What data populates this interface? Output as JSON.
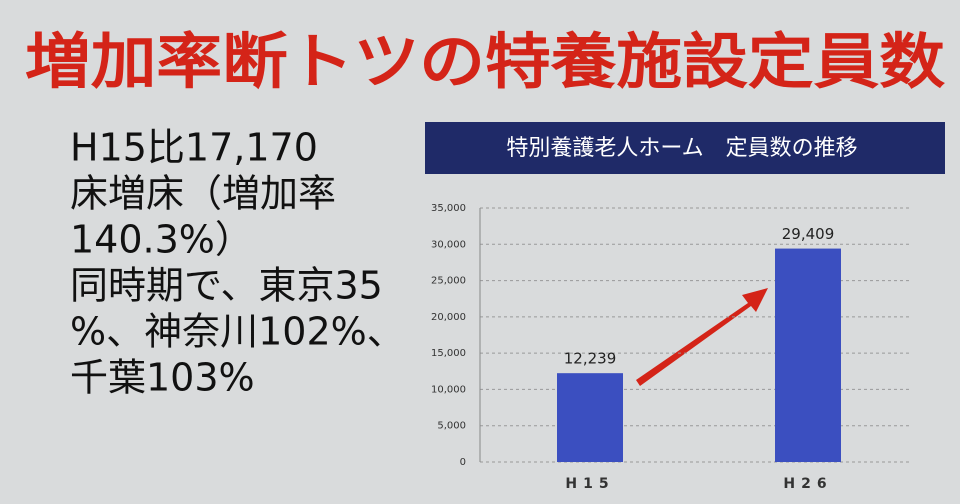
{
  "headline": "増加率断トツの特養施設定員数",
  "body_lines": [
    "H15比17,170",
    "床増床（増加率",
    "140.3%）",
    "同時期で、東京35",
    "%、神奈川102%、",
    "千葉103%"
  ],
  "chart_data": {
    "type": "bar",
    "title": "特別養護老人ホーム　定員数の推移",
    "categories": [
      "H15",
      "H26"
    ],
    "values": [
      12239,
      29409
    ],
    "value_labels": [
      "12,239",
      "29,409"
    ],
    "color": "#3b4fc0",
    "ylim": [
      0,
      35000
    ],
    "yticks": [
      0,
      {
        "value": 5000,
        "label": "5,000"
      },
      {
        "value": 10000,
        "label": "10,000"
      },
      {
        "value": 15000,
        "label": "15,000"
      },
      {
        "value": 20000,
        "label": "20,000"
      },
      {
        "value": 25000,
        "label": "25,000"
      },
      {
        "value": 30000,
        "label": "30,000"
      },
      {
        "value": 35000,
        "label": "35,000"
      }
    ],
    "grid": true
  }
}
